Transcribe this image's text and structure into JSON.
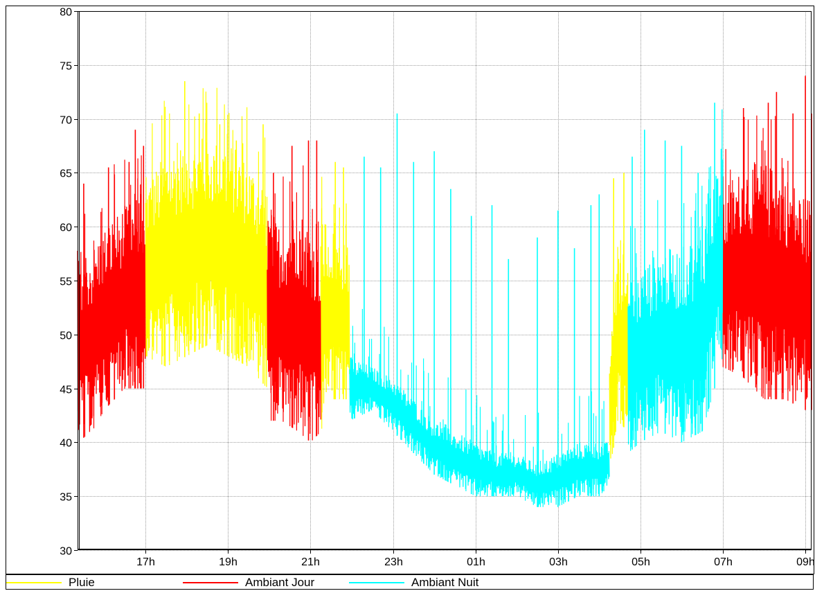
{
  "chart_data": {
    "type": "line",
    "title": "",
    "xlabel": "",
    "ylabel": "",
    "ylim": [
      30,
      80
    ],
    "xlim": [
      15.35,
      33.15
    ],
    "x_unit": "hours (15.35 = 15h21, values above 24 = next day)",
    "y_ticks": [
      "30",
      "35",
      "40",
      "45",
      "50",
      "55",
      "60",
      "65",
      "70",
      "75",
      "80"
    ],
    "x_ticks": [
      {
        "x": 17,
        "label": "17h"
      },
      {
        "x": 19,
        "label": "19h"
      },
      {
        "x": 21,
        "label": "21h"
      },
      {
        "x": 23,
        "label": "23h"
      },
      {
        "x": 25,
        "label": "01h"
      },
      {
        "x": 27,
        "label": "03h"
      },
      {
        "x": 29,
        "label": "05h"
      },
      {
        "x": 31,
        "label": "07h"
      },
      {
        "x": 33,
        "label": "09h"
      }
    ],
    "grid": true,
    "legend_position": "bottom",
    "series": [
      {
        "name": "Pluie",
        "color": "#ffff00",
        "segments": [
          {
            "x_start": 17.0,
            "x_end": 19.95,
            "envelope": [
              [
                17.0,
                48,
                64
              ],
              [
                17.5,
                47,
                67
              ],
              [
                18.0,
                48,
                68
              ],
              [
                18.5,
                49,
                68
              ],
              [
                19.0,
                48,
                68
              ],
              [
                19.5,
                47,
                66
              ],
              [
                19.95,
                45,
                64
              ]
            ],
            "spikes": [
              [
                17.95,
                73.5
              ],
              [
                18.3,
                70.5
              ],
              [
                18.8,
                69.5
              ],
              [
                19.2,
                68
              ],
              [
                19.85,
                69.5
              ]
            ]
          },
          {
            "x_start": 21.25,
            "x_end": 21.95,
            "envelope": [
              [
                21.25,
                41,
                62
              ],
              [
                21.5,
                44,
                60
              ],
              [
                21.95,
                44,
                58
              ]
            ],
            "spikes": [
              [
                21.6,
                66
              ],
              [
                21.8,
                65.5
              ]
            ]
          },
          {
            "x_start": 28.25,
            "x_end": 28.7,
            "envelope": [
              [
                28.25,
                37,
                48
              ],
              [
                28.45,
                42,
                58
              ],
              [
                28.7,
                41,
                56
              ]
            ],
            "spikes": [
              [
                28.35,
                64.5
              ],
              [
                28.6,
                65
              ]
            ]
          }
        ]
      },
      {
        "name": "Ambiant Jour",
        "color": "#ff0000",
        "segments": [
          {
            "x_start": 15.35,
            "x_end": 17.0,
            "envelope": [
              [
                15.35,
                40,
                58
              ],
              [
                15.7,
                41,
                58
              ],
              [
                16.0,
                43,
                60
              ],
              [
                16.5,
                45,
                62
              ],
              [
                17.0,
                45,
                63
              ]
            ],
            "spikes": [
              [
                15.5,
                64
              ],
              [
                16.1,
                65.5
              ],
              [
                16.6,
                66
              ],
              [
                16.75,
                69
              ],
              [
                16.95,
                67.5
              ]
            ]
          },
          {
            "x_start": 19.95,
            "x_end": 21.25,
            "envelope": [
              [
                19.95,
                42,
                62
              ],
              [
                20.3,
                42,
                60
              ],
              [
                20.7,
                41,
                62
              ],
              [
                21.0,
                40,
                60
              ],
              [
                21.25,
                41,
                58
              ]
            ],
            "spikes": [
              [
                20.1,
                65
              ],
              [
                20.55,
                67.5
              ],
              [
                20.95,
                68
              ],
              [
                21.15,
                68
              ]
            ]
          },
          {
            "x_start": 31.0,
            "x_end": 33.15,
            "envelope": [
              [
                31.0,
                47,
                62
              ],
              [
                31.5,
                46,
                66
              ],
              [
                32.0,
                44,
                66
              ],
              [
                32.5,
                44,
                65
              ],
              [
                33.0,
                43,
                63
              ],
              [
                33.15,
                43,
                63
              ]
            ],
            "spikes": [
              [
                31.5,
                71
              ],
              [
                32.1,
                71.5
              ],
              [
                32.3,
                72.5
              ],
              [
                32.7,
                70.5
              ],
              [
                33.0,
                74
              ],
              [
                33.15,
                70.5
              ]
            ]
          }
        ]
      },
      {
        "name": "Ambiant Nuit",
        "color": "#00ffff",
        "segments": [
          {
            "x_start": 21.95,
            "x_end": 28.25,
            "envelope": [
              [
                21.95,
                42,
                48
              ],
              [
                22.5,
                43,
                47
              ],
              [
                23.0,
                41,
                46
              ],
              [
                23.5,
                39,
                44
              ],
              [
                24.0,
                37,
                42
              ],
              [
                24.5,
                36,
                41
              ],
              [
                25.0,
                35,
                40
              ],
              [
                25.5,
                35,
                39
              ],
              [
                26.0,
                35,
                39
              ],
              [
                26.5,
                34,
                38
              ],
              [
                27.0,
                34,
                39
              ],
              [
                27.5,
                35,
                40
              ],
              [
                28.0,
                35,
                40
              ],
              [
                28.25,
                36,
                40
              ]
            ],
            "spikes": [
              [
                22.3,
                66.5
              ],
              [
                22.7,
                65.5
              ],
              [
                23.1,
                70.5
              ],
              [
                23.5,
                66
              ],
              [
                24.0,
                67
              ],
              [
                24.4,
                63.5
              ],
              [
                24.9,
                61
              ],
              [
                25.4,
                62
              ],
              [
                25.8,
                57
              ],
              [
                26.5,
                59
              ],
              [
                27.0,
                61.5
              ],
              [
                27.4,
                58
              ],
              [
                27.8,
                62
              ],
              [
                28.0,
                63
              ]
            ]
          },
          {
            "x_start": 28.7,
            "x_end": 31.0,
            "envelope": [
              [
                28.7,
                39,
                55
              ],
              [
                29.0,
                40,
                56
              ],
              [
                29.5,
                41,
                58
              ],
              [
                30.0,
                40,
                58
              ],
              [
                30.5,
                41,
                60
              ],
              [
                30.8,
                45,
                65
              ],
              [
                31.0,
                48,
                68
              ]
            ],
            "spikes": [
              [
                28.8,
                66.5
              ],
              [
                29.1,
                69
              ],
              [
                29.6,
                68
              ],
              [
                30.0,
                67.5
              ],
              [
                30.4,
                65
              ],
              [
                30.8,
                71.5
              ]
            ]
          }
        ]
      }
    ]
  },
  "legend": {
    "items": [
      {
        "label": "Pluie",
        "color": "#ffff00"
      },
      {
        "label": "Ambiant Jour",
        "color": "#ff0000"
      },
      {
        "label": "Ambiant Nuit",
        "color": "#00ffff"
      }
    ]
  }
}
